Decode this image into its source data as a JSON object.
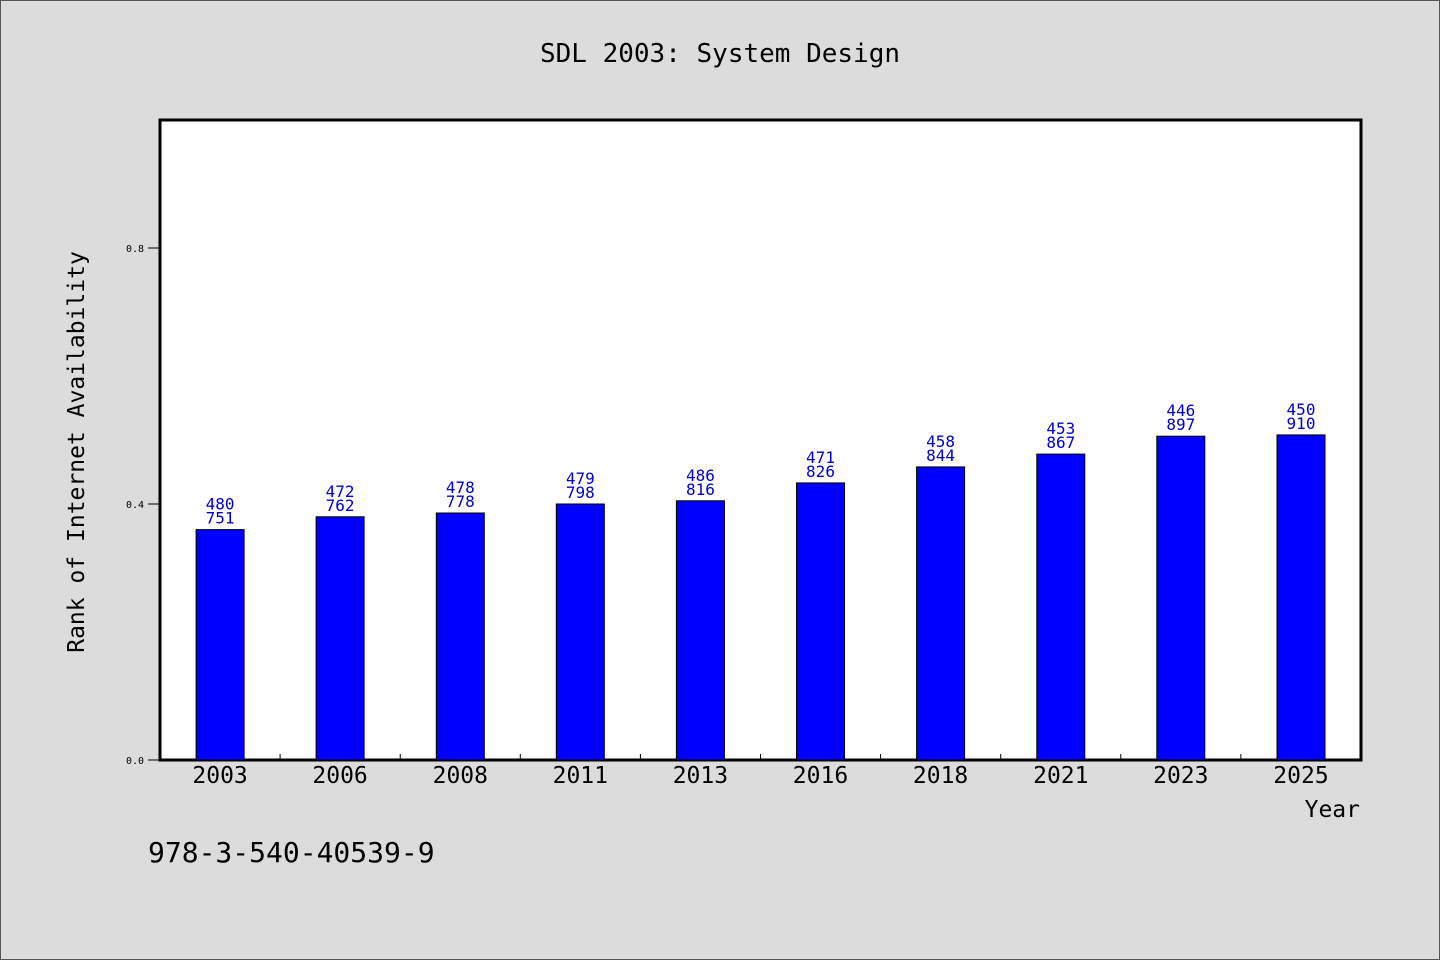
{
  "chart_data": {
    "type": "bar",
    "title": "SDL 2003: System Design",
    "xlabel": "Year",
    "ylabel": "Rank of Internet Availability",
    "categories": [
      "2003",
      "2006",
      "2008",
      "2011",
      "2013",
      "2016",
      "2018",
      "2021",
      "2023",
      "2025"
    ],
    "values": [
      0.36,
      0.38,
      0.386,
      0.4,
      0.405,
      0.433,
      0.458,
      0.478,
      0.506,
      0.508
    ],
    "data_labels": [
      [
        "480",
        "751"
      ],
      [
        "472",
        "762"
      ],
      [
        "478",
        "778"
      ],
      [
        "479",
        "798"
      ],
      [
        "486",
        "816"
      ],
      [
        "471",
        "826"
      ],
      [
        "458",
        "844"
      ],
      [
        "453",
        "867"
      ],
      [
        "446",
        "897"
      ],
      [
        "450",
        "910"
      ]
    ],
    "ylim": [
      0,
      1.0
    ],
    "yticks": [
      "0.0",
      "0.4",
      "0.8"
    ],
    "ytick_values": [
      0.0,
      0.4,
      0.8
    ],
    "bar_color": "#0000ff",
    "label_color": "#0000cc",
    "grid": false,
    "legend": "none"
  },
  "footnote": "978-3-540-40539-9"
}
